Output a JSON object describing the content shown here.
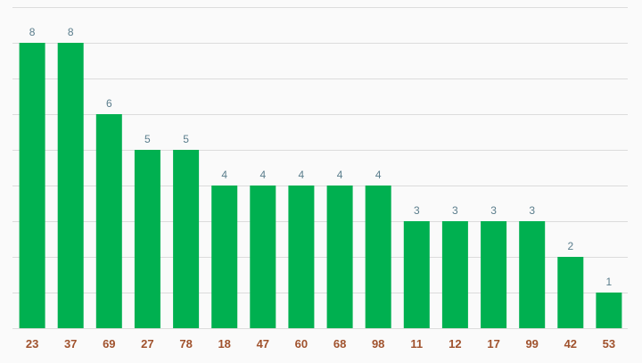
{
  "chart_data": {
    "type": "bar",
    "categories": [
      "23",
      "37",
      "69",
      "27",
      "78",
      "18",
      "47",
      "60",
      "68",
      "98",
      "11",
      "12",
      "17",
      "99",
      "42",
      "53"
    ],
    "values": [
      8,
      8,
      6,
      5,
      5,
      4,
      4,
      4,
      4,
      4,
      3,
      3,
      3,
      3,
      2,
      1
    ],
    "title": "",
    "xlabel": "",
    "ylabel": "",
    "ylim": [
      0,
      9
    ],
    "grid": true,
    "data_labels": true,
    "colors": {
      "bar": "#00b050",
      "value_label": "#5a7d8c",
      "tick_label": "#a0522d",
      "grid": "#dcdcdc",
      "background": "#fafafa"
    }
  }
}
